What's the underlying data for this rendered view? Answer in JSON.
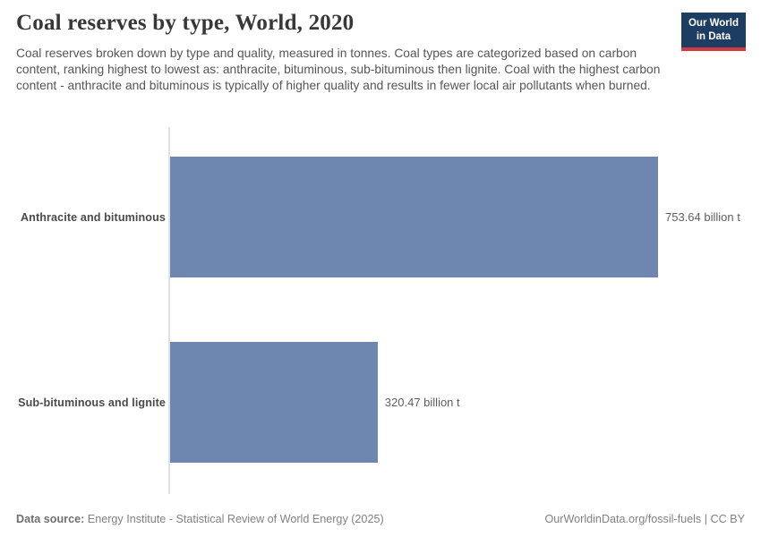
{
  "header": {
    "title": "Coal reserves by type, World, 2020",
    "subtitle": "Coal reserves broken down by type and quality, measured in tonnes. Coal types are categorized based on carbon content, ranking highest to lowest as: anthracite, bituminous, sub-bituminous then lignite. Coal with the highest carbon content - anthracite and bituminous is typically of higher quality and results in fewer local air pollutants when burned.",
    "logo": {
      "line1": "Our World",
      "line2": "in Data"
    }
  },
  "chart_data": {
    "type": "bar",
    "orientation": "horizontal",
    "title": "Coal reserves by type, World, 2020",
    "unit": "billion t",
    "categories": [
      "Anthracite and bituminous",
      "Sub-bituminous and lignite"
    ],
    "values": [
      753.64,
      320.47
    ],
    "value_labels": [
      "753.64 billion t",
      "320.47 billion t"
    ],
    "grid": false,
    "legend": false
  },
  "footer": {
    "datasource_label": "Data source:",
    "datasource_text": "Energy Institute - Statistical Review of World Energy (2025)",
    "link_text": "OurWorldinData.org/fossil-fuels | CC BY"
  },
  "colors": {
    "bar": "#6d87b1",
    "logo_bg": "#1d3d63",
    "logo_accent": "#d23b42",
    "axis_line": "#e0e0e0"
  }
}
